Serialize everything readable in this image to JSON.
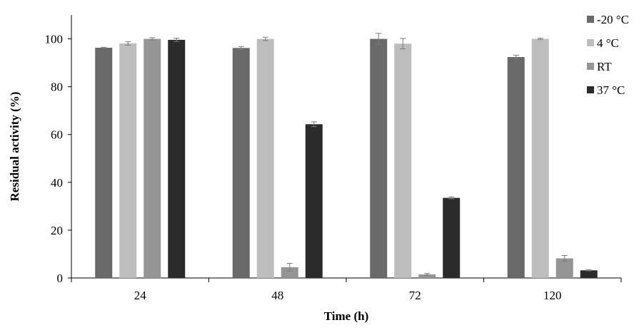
{
  "chart_data": {
    "type": "bar",
    "title": "",
    "xlabel": "Time (h)",
    "ylabel": "Residual activity (%)",
    "categories": [
      "24",
      "48",
      "72",
      "120"
    ],
    "ylim": [
      0,
      110
    ],
    "yticks": [
      0,
      20,
      40,
      60,
      80,
      100
    ],
    "grid": false,
    "legend_position": "top-right",
    "series": [
      {
        "name": "-20 °C",
        "color": "#696969",
        "values": [
          96.3,
          96.2,
          100.0,
          92.4
        ],
        "errors": [
          0.2,
          0.6,
          2.3,
          0.8
        ]
      },
      {
        "name": "4 °C",
        "color": "#bdbdbd",
        "values": [
          98.1,
          100.0,
          98.0,
          100.0
        ],
        "errors": [
          0.7,
          0.7,
          2.2,
          0.3
        ]
      },
      {
        "name": "RT",
        "color": "#959595",
        "values": [
          100.0,
          4.5,
          1.5,
          8.2
        ],
        "errors": [
          0.5,
          1.6,
          0.4,
          1.2
        ]
      },
      {
        "name": "37 °C",
        "color": "#2b2b2b",
        "values": [
          99.6,
          64.3,
          33.5,
          3.2
        ],
        "errors": [
          0.7,
          1.0,
          0.4,
          0.2
        ]
      }
    ]
  }
}
